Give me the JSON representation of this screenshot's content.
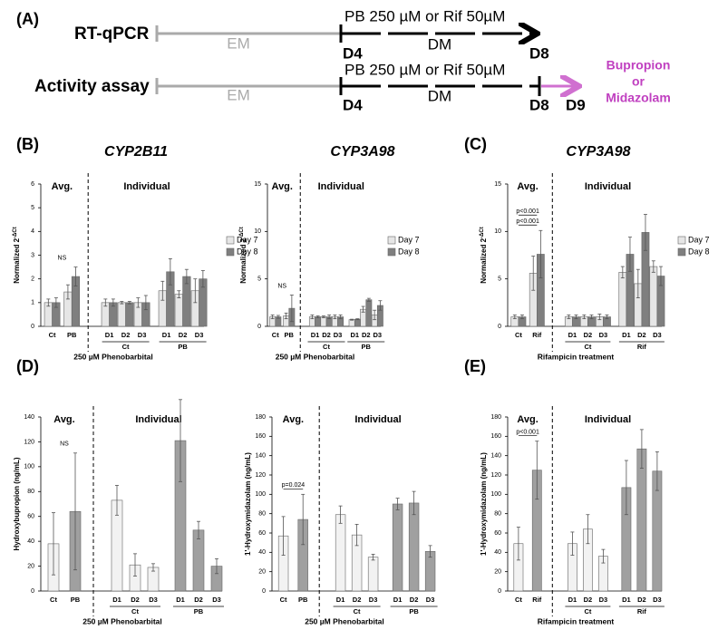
{
  "panel_labels": [
    "(A)",
    "(B)",
    "(C)",
    "(D)",
    "(E)"
  ],
  "timeline": {
    "rows": [
      {
        "label": "RT-qPCR",
        "em": "EM",
        "start": "D4",
        "treatment": "PB 250 µM or Rif 50µM",
        "medium": "DM",
        "end": "D8"
      },
      {
        "label": "Activity assay",
        "em": "EM",
        "start": "D4",
        "treatment": "PB 250 µM or Rif 50µM",
        "medium": "DM",
        "end": "D8",
        "next": "D9",
        "substrate": [
          "Bupropion",
          "or",
          "Midazolam"
        ]
      }
    ]
  },
  "chart_data": [
    {
      "type": "bar",
      "title": "CYP2B11",
      "ylabel": "Normalized 2",
      "ylabel_sup": "-ΔCt",
      "xlabel": "250 µM Phenobarbital",
      "avg_label": "Avg.",
      "indiv_label": "Individual",
      "categories": [
        "Ct",
        "PB",
        "D1",
        "D2",
        "D3",
        "D1",
        "D2",
        "D3"
      ],
      "groups": [
        "Ct",
        "PB"
      ],
      "series": [
        {
          "name": "Day 7",
          "color": "#e6e6e6",
          "values": [
            1.0,
            1.45,
            1.0,
            1.0,
            1.0,
            1.5,
            1.35,
            1.5
          ],
          "errors": [
            0.15,
            0.3,
            0.15,
            0.05,
            0.2,
            0.4,
            0.15,
            0.5
          ]
        },
        {
          "name": "Day 8",
          "color": "#7f7f7f",
          "values": [
            1.0,
            2.1,
            1.0,
            1.0,
            1.0,
            2.3,
            2.1,
            2.0
          ],
          "errors": [
            0.2,
            0.4,
            0.15,
            0.05,
            0.3,
            0.55,
            0.3,
            0.35
          ]
        }
      ],
      "ylim": [
        0,
        6
      ],
      "yticks": [
        0,
        1,
        2,
        3,
        4,
        5,
        6
      ],
      "annotations": [
        "NS"
      ],
      "brackets": false,
      "legend": "right"
    },
    {
      "type": "bar",
      "title": "CYP3A98",
      "ylabel": "Normalized 2",
      "ylabel_sup": "-ΔCt",
      "xlabel": "250 µM Phenobarbital",
      "avg_label": "Avg.",
      "indiv_label": "Individual",
      "categories": [
        "Ct",
        "PB",
        "D1",
        "D2",
        "D3",
        "D1",
        "D2",
        "D3"
      ],
      "groups": [
        "Ct",
        "PB"
      ],
      "series": [
        {
          "name": "Day 7",
          "color": "#e6e6e6",
          "values": [
            1.0,
            1.1,
            1.0,
            1.0,
            1.0,
            0.7,
            1.8,
            1.2
          ],
          "errors": [
            0.2,
            0.3,
            0.2,
            0.1,
            0.2,
            0.05,
            0.3,
            0.5
          ]
        },
        {
          "name": "Day 8",
          "color": "#7f7f7f",
          "values": [
            1.0,
            1.9,
            1.0,
            1.0,
            1.0,
            0.75,
            2.8,
            2.2
          ],
          "errors": [
            0.15,
            1.4,
            0.1,
            0.2,
            0.2,
            0.05,
            0.15,
            0.5
          ]
        }
      ],
      "ylim": [
        0,
        15
      ],
      "yticks": [
        0,
        5,
        10,
        15
      ],
      "annotations": [
        "NS"
      ],
      "brackets": false,
      "legend": "right"
    },
    {
      "type": "bar",
      "title": "CYP3A98",
      "ylabel": "Normalized 2",
      "ylabel_sup": "-ΔCt",
      "xlabel": "Rifampicin treatment",
      "avg_label": "Avg.",
      "indiv_label": "Individual",
      "categories": [
        "Ct",
        "Rif",
        "D1",
        "D2",
        "D3",
        "D1",
        "D2",
        "D3"
      ],
      "groups": [
        "Ct",
        "Rif"
      ],
      "series": [
        {
          "name": "Day 7",
          "color": "#e6e6e6",
          "values": [
            1.0,
            5.6,
            1.0,
            1.0,
            1.0,
            5.7,
            4.5,
            6.3
          ],
          "errors": [
            0.2,
            1.8,
            0.2,
            0.2,
            0.3,
            0.6,
            1.5,
            0.6
          ]
        },
        {
          "name": "Day 8",
          "color": "#7f7f7f",
          "values": [
            1.0,
            7.6,
            1.0,
            1.0,
            1.0,
            7.6,
            9.9,
            5.3
          ],
          "errors": [
            0.2,
            2.5,
            0.2,
            0.2,
            0.2,
            1.8,
            1.9,
            1.0
          ]
        }
      ],
      "ylim": [
        0,
        15
      ],
      "yticks": [
        0,
        5,
        10,
        15
      ],
      "annotations": [
        "p<0.001",
        "p<0.001"
      ],
      "brackets": true,
      "legend": "right"
    },
    {
      "type": "bar",
      "ylabel": "Hydroxybupropion (ng/mL)",
      "xlabel": "250 µM Phenobarbital",
      "avg_label": "Avg.",
      "indiv_label": "Individual",
      "categories": [
        "Ct",
        "PB",
        "D1",
        "D2",
        "D3",
        "D1",
        "D2",
        "D3"
      ],
      "groups": [
        "Ct",
        "PB"
      ],
      "values": [
        38,
        64,
        73,
        21,
        19,
        121,
        49,
        20
      ],
      "errors": [
        25,
        47,
        12,
        9,
        3,
        33,
        7,
        6
      ],
      "colors": [
        "#f2f2f2",
        "#a0a0a0",
        "#f2f2f2",
        "#f2f2f2",
        "#f2f2f2",
        "#a0a0a0",
        "#a0a0a0",
        "#a0a0a0"
      ],
      "ylim": [
        0,
        140
      ],
      "yticks": [
        0,
        20,
        40,
        60,
        80,
        100,
        120,
        140
      ],
      "annotations": [
        "NS"
      ],
      "brackets": false
    },
    {
      "type": "bar",
      "ylabel": "1'-Hydroxymidazolam (ng/mL)",
      "xlabel": "250 µM Phenobarbital",
      "avg_label": "Avg.",
      "indiv_label": "Individual",
      "categories": [
        "Ct",
        "PB",
        "D1",
        "D2",
        "D3",
        "D1",
        "D2",
        "D3"
      ],
      "groups": [
        "Ct",
        "PB"
      ],
      "values": [
        57,
        74,
        79,
        58,
        35,
        90,
        91,
        41
      ],
      "errors": [
        20,
        26,
        9,
        11,
        3,
        6,
        12,
        6
      ],
      "colors": [
        "#f2f2f2",
        "#a0a0a0",
        "#f2f2f2",
        "#f2f2f2",
        "#f2f2f2",
        "#a0a0a0",
        "#a0a0a0",
        "#a0a0a0"
      ],
      "ylim": [
        0,
        180
      ],
      "yticks": [
        0,
        20,
        40,
        60,
        80,
        100,
        120,
        140,
        160,
        180
      ],
      "annotations": [
        "p=0.024"
      ],
      "brackets": true
    },
    {
      "type": "bar",
      "ylabel": "1'-Hydroxymidazolam (ng/mL)",
      "xlabel": "Rifampicin treatment",
      "avg_label": "Avg.",
      "indiv_label": "Individual",
      "categories": [
        "Ct",
        "Rif",
        "D1",
        "D2",
        "D3",
        "D1",
        "D2",
        "D3"
      ],
      "groups": [
        "Ct",
        "Rif"
      ],
      "values": [
        49,
        125,
        49,
        64,
        36,
        107,
        147,
        124
      ],
      "errors": [
        17,
        30,
        12,
        15,
        7,
        28,
        20,
        20
      ],
      "colors": [
        "#f2f2f2",
        "#a0a0a0",
        "#f2f2f2",
        "#f2f2f2",
        "#f2f2f2",
        "#a0a0a0",
        "#a0a0a0",
        "#a0a0a0"
      ],
      "ylim": [
        0,
        180
      ],
      "yticks": [
        0,
        20,
        40,
        60,
        80,
        100,
        120,
        140,
        160,
        180
      ],
      "annotations": [
        "p<0.001"
      ],
      "brackets": true
    }
  ]
}
